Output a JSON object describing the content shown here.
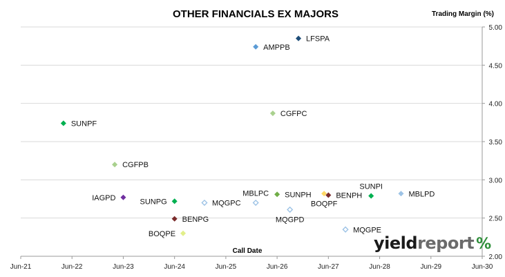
{
  "chart_data": {
    "type": "scatter",
    "title": "OTHER FINANCIALS EX MAJORS",
    "xlabel": "Call Date",
    "ylabel": "Trading Margin (%)",
    "xlim": [
      "2021-06",
      "2030-06"
    ],
    "ylim": [
      2.0,
      5.0
    ],
    "x_ticks": [
      "Jun-21",
      "Jun-22",
      "Jun-23",
      "Jun-24",
      "Jun-25",
      "Jun-26",
      "Jun-27",
      "Jun-28",
      "Jun-29",
      "Jun-30"
    ],
    "y_ticks": [
      "2.00",
      "2.50",
      "3.00",
      "3.50",
      "4.00",
      "4.50",
      "5.00"
    ],
    "grid": {
      "horizontal": true,
      "vertical": false
    },
    "y_axis_side": "right",
    "points": [
      {
        "label": "LFSPA",
        "x": "2026-11",
        "y": 4.85,
        "color": "#1f4e79",
        "fill": true,
        "label_side": "right"
      },
      {
        "label": "AMPPB",
        "x": "2026-01",
        "y": 4.74,
        "color": "#5b9bd5",
        "fill": true,
        "label_side": "right"
      },
      {
        "label": "CGFPC",
        "x": "2026-05",
        "y": 3.87,
        "color": "#a9d18e",
        "fill": true,
        "label_side": "right"
      },
      {
        "label": "SUNPF",
        "x": "2022-04",
        "y": 3.74,
        "color": "#00b050",
        "fill": true,
        "label_side": "right"
      },
      {
        "label": "CGFPB",
        "x": "2023-04",
        "y": 3.2,
        "color": "#a9d18e",
        "fill": true,
        "label_side": "right"
      },
      {
        "label": "SUNPI",
        "x": "2028-04",
        "y": 2.79,
        "color": "#00b050",
        "fill": true,
        "label_side": "above"
      },
      {
        "label": "BENPH",
        "x": "2027-06",
        "y": 2.8,
        "color": "#7b2c2c",
        "fill": true,
        "label_side": "right"
      },
      {
        "label": "MBLPD",
        "x": "2028-11",
        "y": 2.82,
        "color": "#9dc3e6",
        "fill": true,
        "label_side": "right"
      },
      {
        "label": "SUNPH",
        "x": "2026-06",
        "y": 2.81,
        "color": "#70ad47",
        "fill": true,
        "label_side": "right"
      },
      {
        "label": "IAGPD",
        "x": "2023-06",
        "y": 2.77,
        "color": "#7030a0",
        "fill": true,
        "label_side": "left"
      },
      {
        "label": "BOQPF",
        "x": "2027-05",
        "y": 2.82,
        "color": "#ffd966",
        "fill": true,
        "label_side": "below"
      },
      {
        "label": "SUNPG",
        "x": "2024-06",
        "y": 2.72,
        "color": "#00b050",
        "fill": true,
        "label_side": "left"
      },
      {
        "label": "MQGPC",
        "x": "2025-01",
        "y": 2.7,
        "color": "#9dc3e6",
        "fill": false,
        "label_side": "right"
      },
      {
        "label": "MBLPC",
        "x": "2026-01",
        "y": 2.7,
        "color": "#9dc3e6",
        "fill": false,
        "label_side": "above"
      },
      {
        "label": "MQGPD",
        "x": "2026-09",
        "y": 2.61,
        "color": "#9dc3e6",
        "fill": false,
        "label_side": "below"
      },
      {
        "label": "BENPG",
        "x": "2024-06",
        "y": 2.49,
        "color": "#7b2c2c",
        "fill": true,
        "label_side": "right"
      },
      {
        "label": "MQGPE",
        "x": "2027-10",
        "y": 2.35,
        "color": "#9dc3e6",
        "fill": false,
        "label_side": "right"
      },
      {
        "label": "BOQPE",
        "x": "2024-08",
        "y": 2.3,
        "color": "#e2ef8a",
        "fill": true,
        "label_side": "left"
      }
    ]
  },
  "branding": {
    "logo_part1": "yield",
    "logo_part2": "report",
    "logo_symbol": "%"
  }
}
